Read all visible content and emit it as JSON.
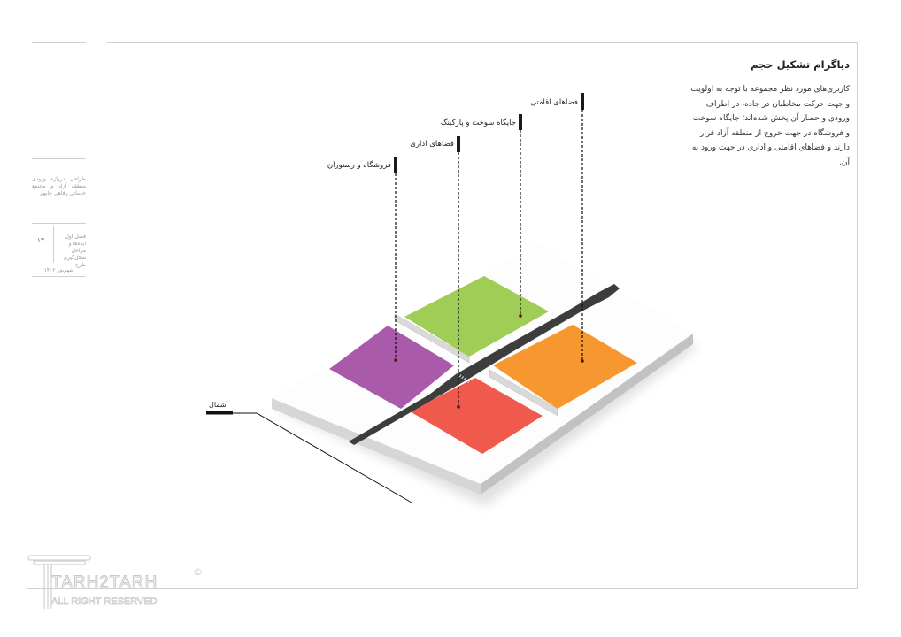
{
  "sidebar": {
    "project_title": "طراحی دروازه ورودی منطقه آزاد و مجتمع خدماتی رفاهی چابهار",
    "page_number": "۱۴",
    "chapter": "فصل اول ایده‌ها و مراحل شکل‌گیری طرح",
    "date": "شهریور ۱۴۰۲"
  },
  "description": {
    "title": "دیاگرام تشکیل حجم",
    "body": "کاربری‌های مورد نظر مجموعه با توجه به اولویت و جهت حرکت مخاطبان در جاده، در اطراف ورودی و حصار آن پخش شده‌اند؛ جایگاه سوخت و فروشگاه در جهت خروج از منطقه آزاد قرار دارند و فضاهای اقامتی و اداری در جهت ورود به آن."
  },
  "diagram": {
    "labels": [
      {
        "text": "فضاهای اقامتی",
        "zone": "orange"
      },
      {
        "text": "جایگاه سوخت و پارکینگ",
        "zone": "green"
      },
      {
        "text": "فضاهای اداری",
        "zone": "red"
      },
      {
        "text": "فروشگاه و رستوران",
        "zone": "purple"
      }
    ],
    "north_label": "شمال",
    "colors": {
      "residential": "#f7972f",
      "fuel_parking": "#9fcd55",
      "office": "#f05a4c",
      "shop_restaurant": "#a95aab",
      "road": "#3d3d3d",
      "slab": "#ffffff"
    }
  },
  "watermark": {
    "brand": "TARH2TARH",
    "subtitle": "ALL RIGHT RESERVED",
    "copyright": "©"
  }
}
